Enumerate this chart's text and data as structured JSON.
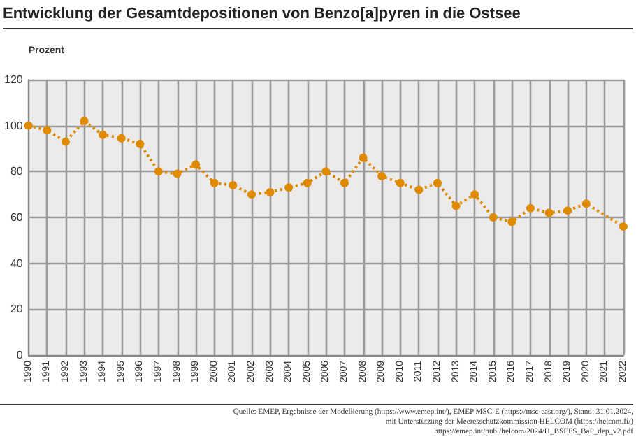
{
  "chart_data": {
    "type": "line",
    "title": "Entwicklung der Gesamtdepositionen von Benzo[a]pyren in die Ostsee",
    "ylabel": "Prozent",
    "categories": [
      "1990",
      "1991",
      "1992",
      "1993",
      "1994",
      "1995",
      "1996",
      "1997",
      "1998",
      "1999",
      "2000",
      "2001",
      "2002",
      "2003",
      "2004",
      "2005",
      "2006",
      "2007",
      "2008",
      "2009",
      "2010",
      "2011",
      "2012",
      "2013",
      "2014",
      "2015",
      "2016",
      "2017",
      "2018",
      "2019",
      "2020",
      "2021",
      "2022"
    ],
    "series": [
      {
        "color": "#e08a00",
        "values": [
          100,
          98,
          93,
          102,
          96,
          94.5,
          92,
          80,
          79,
          83,
          75,
          74,
          70,
          71,
          73,
          75,
          80,
          75,
          86,
          78,
          75,
          72,
          75,
          65,
          70,
          60,
          58,
          64,
          62,
          63,
          66,
          null,
          56
        ]
      }
    ],
    "ylim": [
      0,
      120
    ],
    "yticks": [
      0,
      20,
      40,
      60,
      80,
      100,
      120
    ],
    "grid": true,
    "marker": "circle",
    "line_style": "dotted",
    "annotations": [
      "Quelle: EMEP, Ergebnisse der Modellierung (https://www.emep.int/), EMEP MSC-E (https://msc-east.org/), Stand: 31.01.2024,",
      "mit Unterstützung der Meeresschutzkommission HELCOM (https://helcom.fi/)",
      "https://emep.int/publ/helcom/2024/H_BSEFS_BaP_dep_v2.pdf"
    ]
  }
}
